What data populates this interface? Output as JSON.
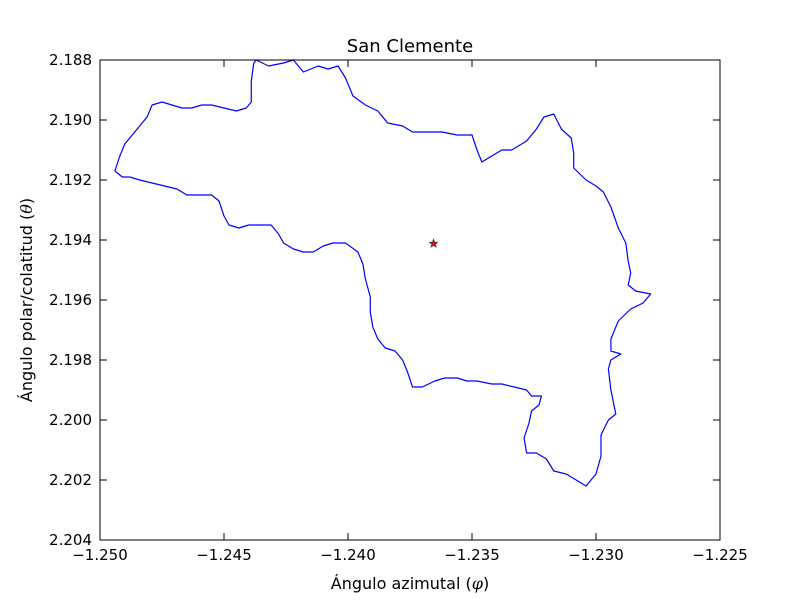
{
  "chart_data": {
    "type": "line",
    "title": "San Clemente",
    "xlabel": {
      "text": "Ángulo azimutal (",
      "symbol": "φ",
      "close": ")"
    },
    "ylabel": {
      "text": "Ángulo polar/colatitud (",
      "symbol": "θ",
      "close": ")"
    },
    "xlim": [
      -1.25,
      -1.225
    ],
    "ylim": [
      2.204,
      2.188
    ],
    "y_inverted": true,
    "grid": false,
    "xticks": [
      -1.25,
      -1.245,
      -1.24,
      -1.235,
      -1.23,
      -1.225
    ],
    "xtick_labels": [
      "−1.250",
      "−1.245",
      "−1.240",
      "−1.235",
      "−1.230",
      "−1.225"
    ],
    "yticks": [
      2.188,
      2.19,
      2.192,
      2.194,
      2.196,
      2.198,
      2.2,
      2.202,
      2.204
    ],
    "ytick_labels": [
      "2.188",
      "2.190",
      "2.192",
      "2.194",
      "2.196",
      "2.198",
      "2.200",
      "2.202",
      "2.204"
    ],
    "series": [
      {
        "kind": "boundary",
        "color": "#0000ff",
        "points": [
          [
            -1.2437,
            2.188
          ],
          [
            -1.2432,
            2.1882
          ],
          [
            -1.2426,
            2.1881
          ],
          [
            -1.2422,
            2.188
          ],
          [
            -1.2418,
            2.1884
          ],
          [
            -1.2412,
            2.1882
          ],
          [
            -1.2408,
            2.1883
          ],
          [
            -1.2404,
            2.1882
          ],
          [
            -1.2401,
            2.1886
          ],
          [
            -1.2398,
            2.1892
          ],
          [
            -1.2393,
            2.1895
          ],
          [
            -1.2388,
            2.1897
          ],
          [
            -1.2384,
            2.1901
          ],
          [
            -1.2378,
            2.1902
          ],
          [
            -1.2374,
            2.1904
          ],
          [
            -1.2368,
            2.1904
          ],
          [
            -1.2362,
            2.1904
          ],
          [
            -1.2356,
            2.1905
          ],
          [
            -1.235,
            2.1905
          ],
          [
            -1.2348,
            2.191
          ],
          [
            -1.2346,
            2.1914
          ],
          [
            -1.2342,
            2.1912
          ],
          [
            -1.2338,
            2.191
          ],
          [
            -1.2334,
            2.191
          ],
          [
            -1.2328,
            2.1907
          ],
          [
            -1.2324,
            2.1903
          ],
          [
            -1.2321,
            2.1899
          ],
          [
            -1.2317,
            2.1898
          ],
          [
            -1.2314,
            2.1903
          ],
          [
            -1.231,
            2.1906
          ],
          [
            -1.2309,
            2.1911
          ],
          [
            -1.2309,
            2.1916
          ],
          [
            -1.2304,
            2.192
          ],
          [
            -1.23,
            2.1922
          ],
          [
            -1.2297,
            2.1924
          ],
          [
            -1.2294,
            2.1929
          ],
          [
            -1.2291,
            2.1936
          ],
          [
            -1.2288,
            2.1941
          ],
          [
            -1.2287,
            2.1947
          ],
          [
            -1.2286,
            2.1951
          ],
          [
            -1.2287,
            2.1955
          ],
          [
            -1.2284,
            2.1957
          ],
          [
            -1.2278,
            2.1958
          ],
          [
            -1.2281,
            2.1961
          ],
          [
            -1.2286,
            2.1963
          ],
          [
            -1.2291,
            2.1967
          ],
          [
            -1.2294,
            2.1973
          ],
          [
            -1.2294,
            2.1977
          ],
          [
            -1.229,
            2.1978
          ],
          [
            -1.2294,
            2.198
          ],
          [
            -1.2295,
            2.1983
          ],
          [
            -1.2294,
            2.199
          ],
          [
            -1.2292,
            2.1998
          ],
          [
            -1.2295,
            2.2
          ],
          [
            -1.2298,
            2.2005
          ],
          [
            -1.2298,
            2.2012
          ],
          [
            -1.23,
            2.2018
          ],
          [
            -1.2304,
            2.2022
          ],
          [
            -1.2308,
            2.202
          ],
          [
            -1.2312,
            2.2018
          ],
          [
            -1.2317,
            2.2017
          ],
          [
            -1.232,
            2.2013
          ],
          [
            -1.2324,
            2.2011
          ],
          [
            -1.2328,
            2.2011
          ],
          [
            -1.2329,
            2.2006
          ],
          [
            -1.2327,
            2.2001
          ],
          [
            -1.2326,
            2.1997
          ],
          [
            -1.2323,
            2.1995
          ],
          [
            -1.2322,
            2.1992
          ],
          [
            -1.2326,
            2.1992
          ],
          [
            -1.2328,
            2.199
          ],
          [
            -1.2333,
            2.1989
          ],
          [
            -1.2338,
            2.1988
          ],
          [
            -1.2342,
            2.1988
          ],
          [
            -1.2348,
            2.1987
          ],
          [
            -1.2352,
            2.1987
          ],
          [
            -1.2356,
            2.1986
          ],
          [
            -1.2361,
            2.1986
          ],
          [
            -1.2365,
            2.1987
          ],
          [
            -1.237,
            2.1989
          ],
          [
            -1.2374,
            2.1989
          ],
          [
            -1.2376,
            2.1984
          ],
          [
            -1.2378,
            2.198
          ],
          [
            -1.2381,
            2.1977
          ],
          [
            -1.2385,
            2.1976
          ],
          [
            -1.2388,
            2.1973
          ],
          [
            -1.239,
            2.1969
          ],
          [
            -1.2391,
            2.1964
          ],
          [
            -1.2391,
            2.1959
          ],
          [
            -1.2393,
            2.1953
          ],
          [
            -1.2394,
            2.1948
          ],
          [
            -1.2396,
            2.1944
          ],
          [
            -1.2401,
            2.1941
          ],
          [
            -1.2406,
            2.1941
          ],
          [
            -1.241,
            2.1942
          ],
          [
            -1.2414,
            2.1944
          ],
          [
            -1.2418,
            2.1944
          ],
          [
            -1.2422,
            2.1943
          ],
          [
            -1.2426,
            2.1941
          ],
          [
            -1.2428,
            2.1938
          ],
          [
            -1.2431,
            2.1935
          ],
          [
            -1.2435,
            2.1935
          ],
          [
            -1.244,
            2.1935
          ],
          [
            -1.2444,
            2.1936
          ],
          [
            -1.2448,
            2.1935
          ],
          [
            -1.245,
            2.1932
          ],
          [
            -1.2452,
            2.1927
          ],
          [
            -1.2455,
            2.1925
          ],
          [
            -1.246,
            2.1925
          ],
          [
            -1.2465,
            2.1925
          ],
          [
            -1.2469,
            2.1923
          ],
          [
            -1.2474,
            2.1922
          ],
          [
            -1.2479,
            2.1921
          ],
          [
            -1.2484,
            2.192
          ],
          [
            -1.2488,
            2.1919
          ],
          [
            -1.2491,
            2.1919
          ],
          [
            -1.2494,
            2.1917
          ],
          [
            -1.2492,
            2.1912
          ],
          [
            -1.249,
            2.1908
          ],
          [
            -1.2487,
            2.1905
          ],
          [
            -1.2484,
            2.1902
          ],
          [
            -1.2481,
            2.1899
          ],
          [
            -1.2479,
            2.1895
          ],
          [
            -1.2475,
            2.1894
          ],
          [
            -1.2471,
            2.1895
          ],
          [
            -1.2467,
            2.1896
          ],
          [
            -1.2463,
            2.1896
          ],
          [
            -1.2459,
            2.1895
          ],
          [
            -1.2455,
            2.1895
          ],
          [
            -1.245,
            2.1896
          ],
          [
            -1.2445,
            2.1897
          ],
          [
            -1.2441,
            2.1896
          ],
          [
            -1.2439,
            2.1894
          ],
          [
            -1.2439,
            2.1887
          ],
          [
            -1.2438,
            2.1881
          ],
          [
            -1.2437,
            2.188
          ]
        ]
      }
    ],
    "marker": {
      "kind": "star",
      "x": -1.23655,
      "y": 2.19412,
      "fill": "#cc1111",
      "stroke": "#333333"
    }
  }
}
